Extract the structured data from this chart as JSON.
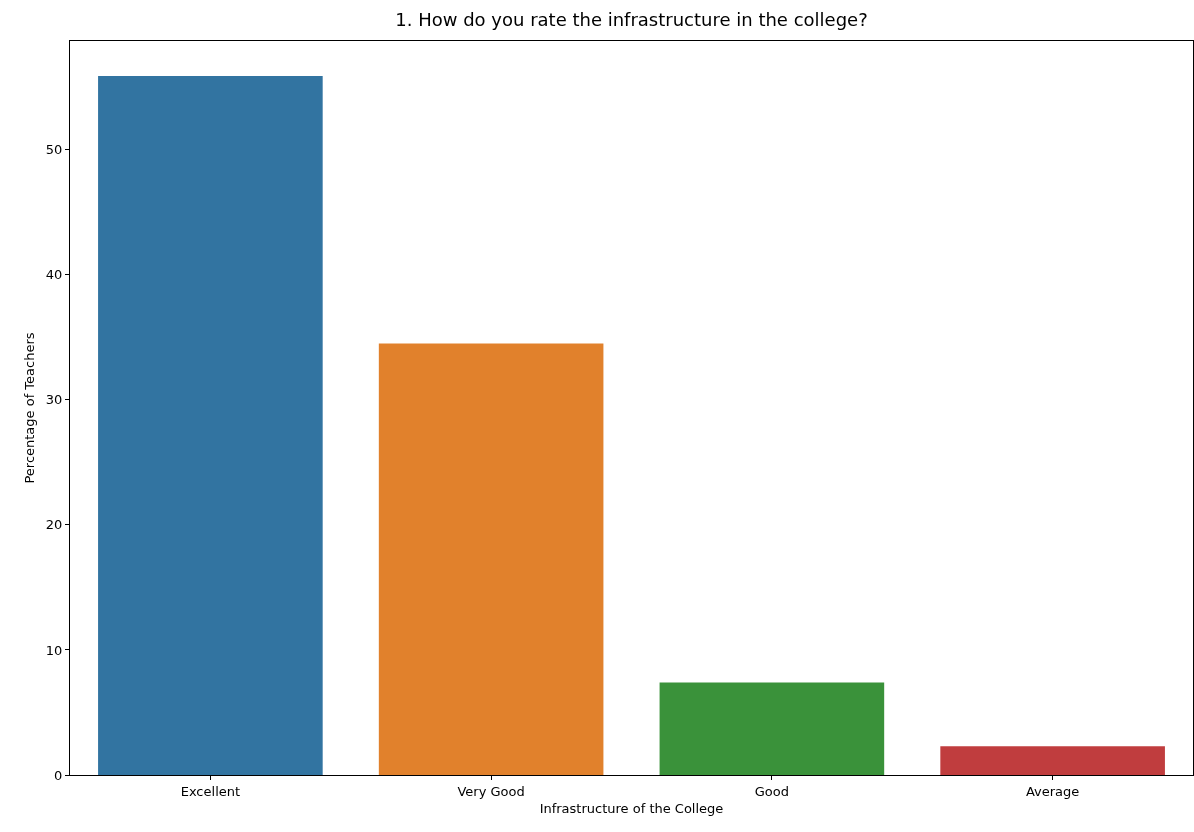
{
  "chart_data": {
    "type": "bar",
    "title": "1. How do you rate the infrastructure in the college?",
    "xlabel": "Infrastructure of the College",
    "ylabel": "Percentage of Teachers",
    "categories": [
      "Excellent",
      "Very Good",
      "Good",
      "Average"
    ],
    "values": [
      55.9,
      34.5,
      7.4,
      2.3
    ],
    "colors": [
      "#3274a1",
      "#e1812c",
      "#3a923a",
      "#c03d3e"
    ],
    "ylim": [
      0,
      58.7
    ],
    "yticks": [
      0,
      10,
      20,
      30,
      40,
      50
    ],
    "grid": false,
    "legend": false
  }
}
